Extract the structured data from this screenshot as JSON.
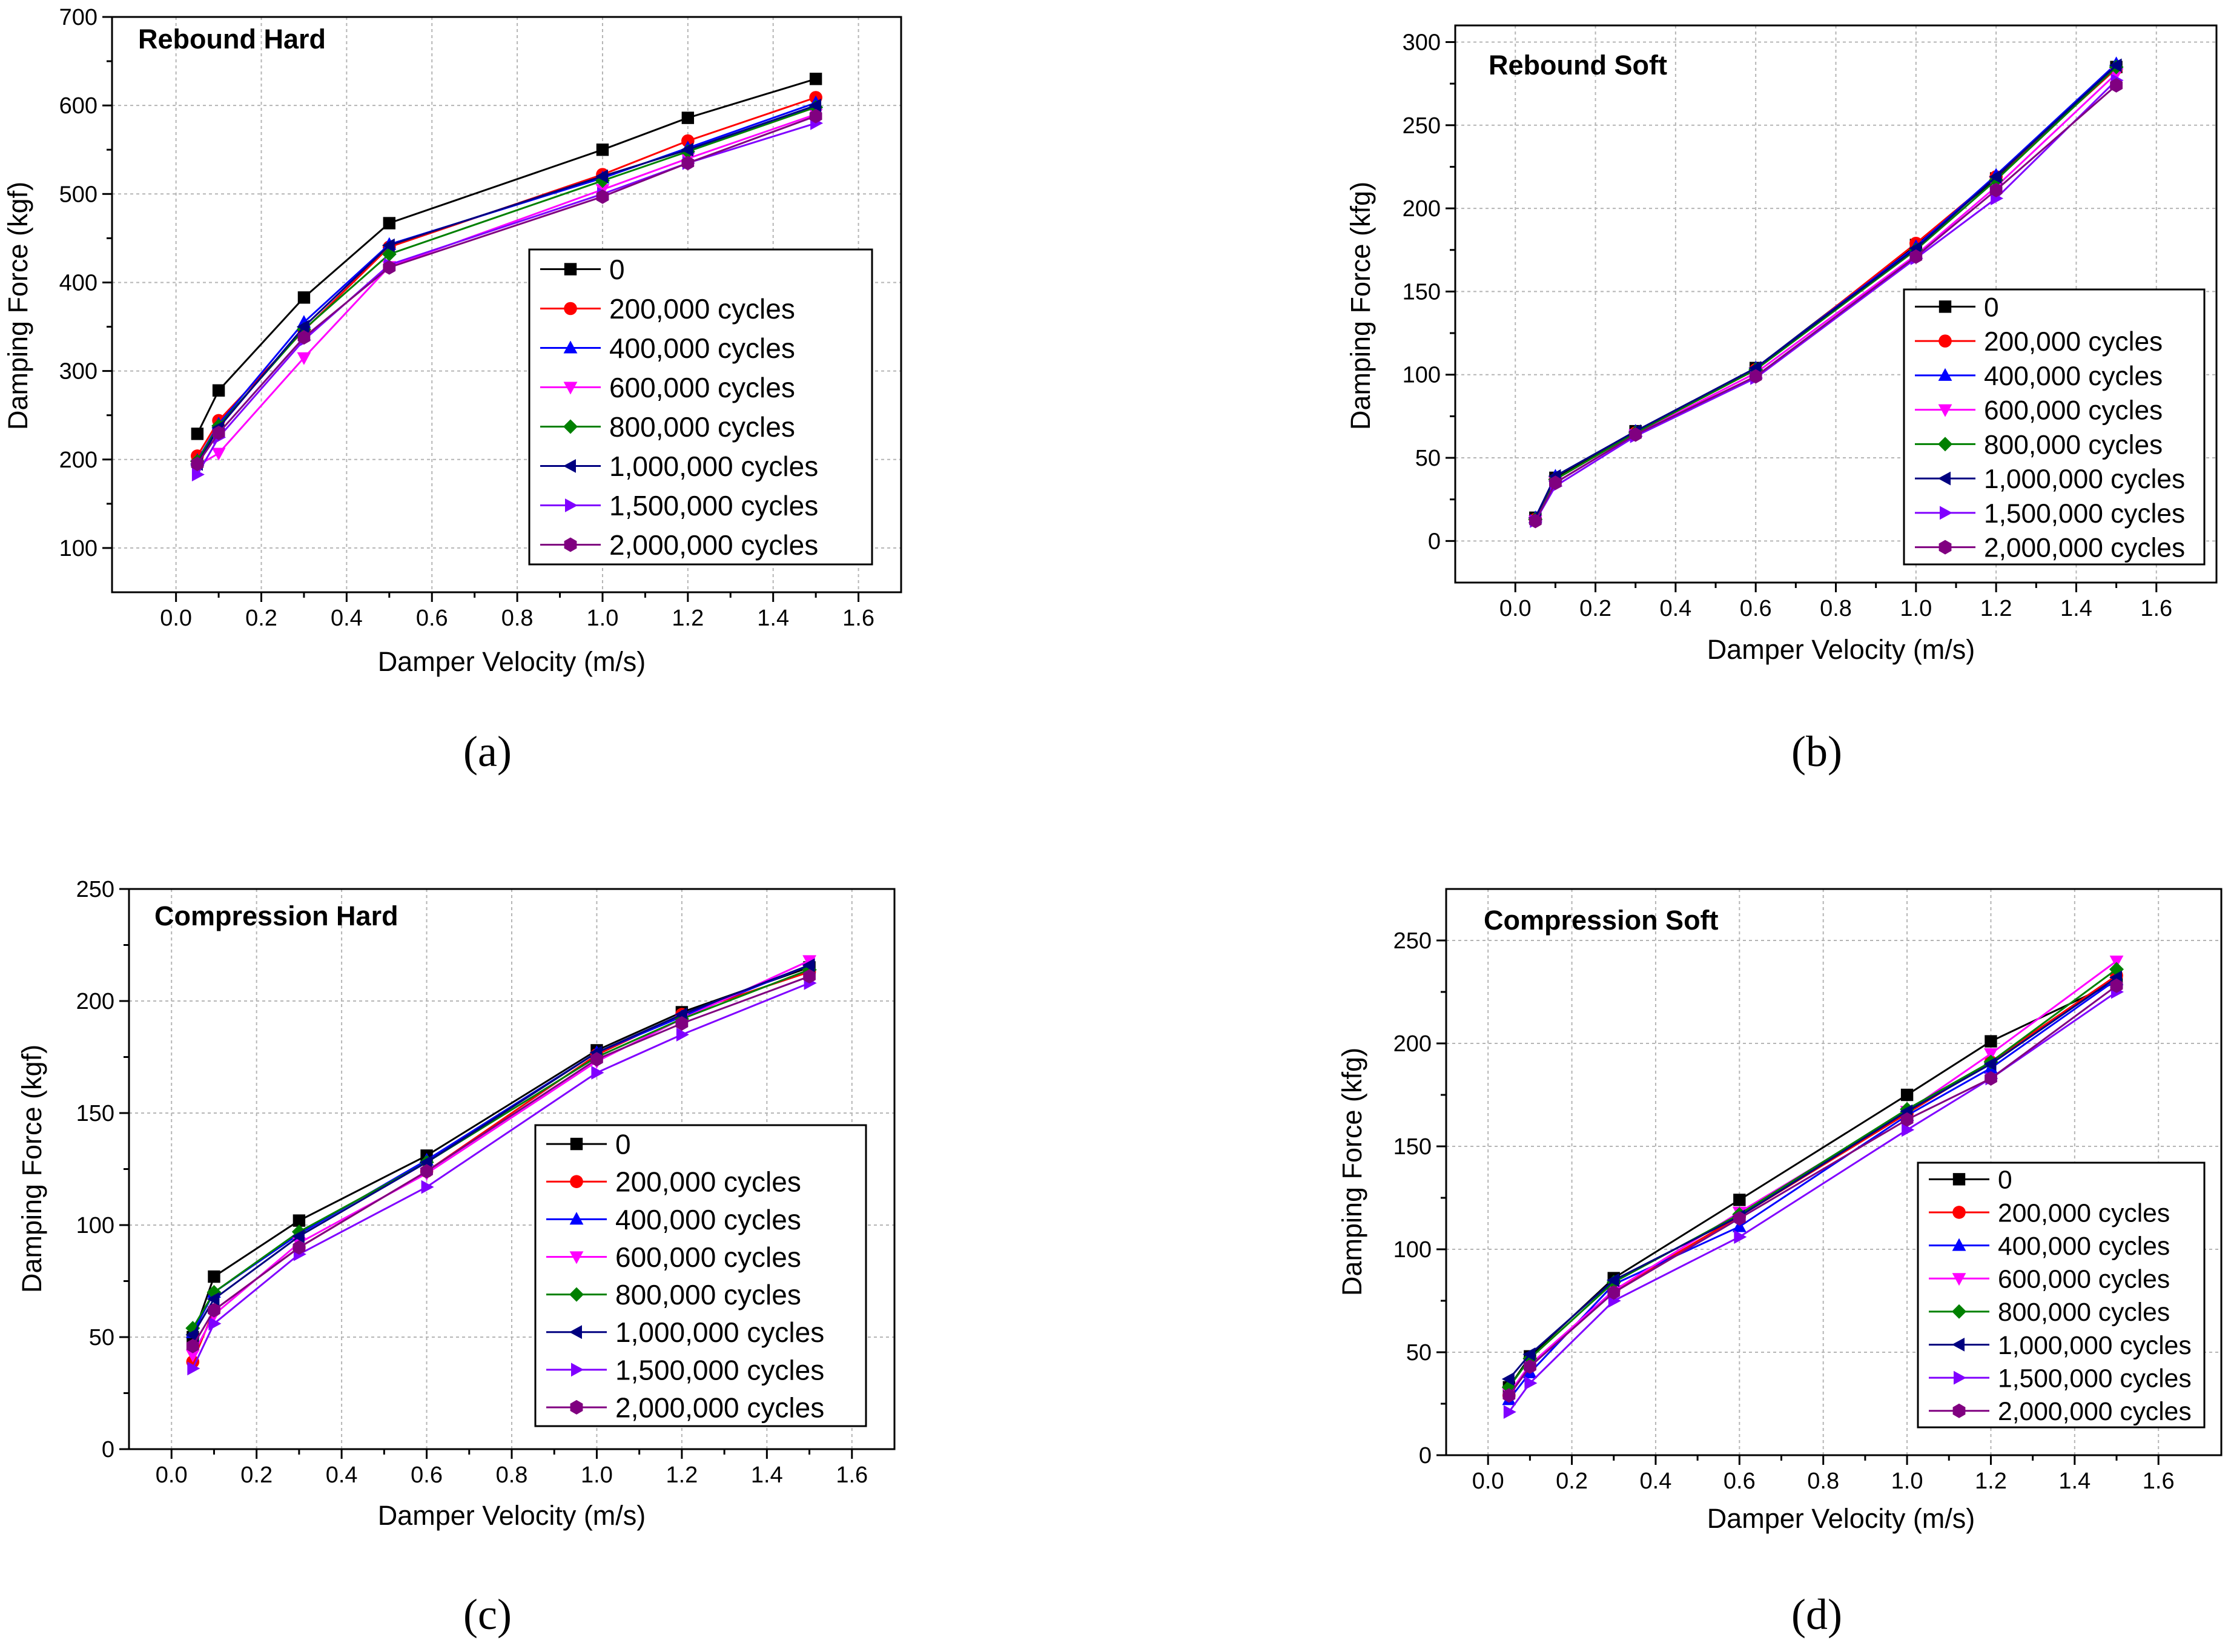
{
  "series_styles": [
    {
      "marker": "square",
      "color": "#000000"
    },
    {
      "marker": "circle",
      "color": "#ff0000"
    },
    {
      "marker": "triangle-up",
      "color": "#0000ff"
    },
    {
      "marker": "triangle-down",
      "color": "#ff00ff"
    },
    {
      "marker": "diamond",
      "color": "#008000"
    },
    {
      "marker": "triangle-left",
      "color": "#000080"
    },
    {
      "marker": "triangle-right",
      "color": "#8000ff"
    },
    {
      "marker": "hexagon",
      "color": "#800080"
    }
  ],
  "chart_data": [
    {
      "type": "line",
      "panel": "a",
      "caption": "(a)",
      "title": "Rebound Hard",
      "xlabel": "Damper Velocity (m/s)",
      "ylabel": "Damping Force (kgf)",
      "xlim": [
        -0.15,
        1.7
      ],
      "ylim": [
        50,
        700
      ],
      "xticks": [
        0.0,
        0.2,
        0.4,
        0.6,
        0.8,
        1.0,
        1.2,
        1.4,
        1.6
      ],
      "xtick_labels": [
        "0.0",
        "0.2",
        "0.4",
        "0.6",
        "0.8",
        "1.0",
        "1.2",
        "1.4",
        "1.6"
      ],
      "yticks": [
        100,
        200,
        300,
        400,
        500,
        600,
        700
      ],
      "ytick_labels": [
        "100",
        "200",
        "300",
        "400",
        "500",
        "600",
        "700"
      ],
      "grid": true,
      "legend_position": "right",
      "x": [
        0.05,
        0.1,
        0.3,
        0.5,
        1.0,
        1.2,
        1.5
      ],
      "series": [
        {
          "name": "0",
          "values": [
            229,
            278,
            383,
            467,
            550,
            586,
            630
          ]
        },
        {
          "name": "200,000 cycles",
          "values": [
            204,
            244,
            346,
            440,
            522,
            560,
            609
          ]
        },
        {
          "name": "400,000 cycles",
          "values": [
            199,
            240,
            355,
            443,
            518,
            552,
            603
          ]
        },
        {
          "name": "600,000 cycles",
          "values": [
            193,
            207,
            315,
            418,
            505,
            540,
            590
          ]
        },
        {
          "name": "800,000 cycles",
          "values": [
            198,
            238,
            347,
            432,
            515,
            548,
            598
          ]
        },
        {
          "name": "1,000,000 cycles",
          "values": [
            195,
            236,
            350,
            442,
            520,
            550,
            600
          ]
        },
        {
          "name": "1,500,000 cycles",
          "values": [
            183,
            225,
            335,
            420,
            500,
            535,
            580
          ]
        },
        {
          "name": "2,000,000 cycles",
          "values": [
            195,
            230,
            338,
            417,
            497,
            535,
            588
          ]
        }
      ]
    },
    {
      "type": "line",
      "panel": "b",
      "caption": "(b)",
      "title": "Rebound Soft",
      "xlabel": "Damper Velocity (m/s)",
      "ylabel": "Damping Force (kfg)",
      "xlim": [
        -0.15,
        1.75
      ],
      "ylim": [
        -25,
        310
      ],
      "xticks": [
        0.0,
        0.2,
        0.4,
        0.6,
        0.8,
        1.0,
        1.2,
        1.4,
        1.6
      ],
      "xtick_labels": [
        "0.0",
        "0.2",
        "0.4",
        "0.6",
        "0.8",
        "1.0",
        "1.2",
        "1.4",
        "1.6"
      ],
      "yticks": [
        0,
        50,
        100,
        150,
        200,
        250,
        300
      ],
      "ytick_labels": [
        "0",
        "50",
        "100",
        "150",
        "200",
        "250",
        "300"
      ],
      "grid": true,
      "legend_position": "bottom-right",
      "x": [
        0.05,
        0.1,
        0.3,
        0.6,
        1.0,
        1.2,
        1.5
      ],
      "series": [
        {
          "name": "0",
          "values": [
            14,
            38,
            66,
            104,
            178,
            218,
            285
          ]
        },
        {
          "name": "200,000 cycles",
          "values": [
            13,
            37,
            65,
            103,
            179,
            219,
            284
          ]
        },
        {
          "name": "400,000 cycles",
          "values": [
            14,
            39,
            66,
            104,
            177,
            220,
            287
          ]
        },
        {
          "name": "600,000 cycles",
          "values": [
            12,
            35,
            64,
            101,
            172,
            213,
            281
          ]
        },
        {
          "name": "800,000 cycles",
          "values": [
            13,
            37,
            65,
            103,
            175,
            217,
            285
          ]
        },
        {
          "name": "1,000,000 cycles",
          "values": [
            14,
            39,
            66,
            104,
            176,
            219,
            286
          ]
        },
        {
          "name": "1,500,000 cycles",
          "values": [
            12,
            33,
            63,
            98,
            170,
            206,
            277
          ]
        },
        {
          "name": "2,000,000 cycles",
          "values": [
            12,
            35,
            64,
            99,
            171,
            211,
            274
          ]
        }
      ]
    },
    {
      "type": "line",
      "panel": "c",
      "caption": "(c)",
      "title": "Compression Hard",
      "xlabel": "Damper Velocity (m/s)",
      "ylabel": "Damping Force (kgf)",
      "xlim": [
        -0.1,
        1.7
      ],
      "ylim": [
        0,
        250
      ],
      "xticks": [
        0.0,
        0.2,
        0.4,
        0.6,
        0.8,
        1.0,
        1.2,
        1.4,
        1.6
      ],
      "xtick_labels": [
        "0.0",
        "0.2",
        "0.4",
        "0.6",
        "0.8",
        "1.0",
        "1.2",
        "1.4",
        "1.6"
      ],
      "yticks": [
        0,
        50,
        100,
        150,
        200,
        250
      ],
      "ytick_labels": [
        "0",
        "50",
        "100",
        "150",
        "200",
        "250"
      ],
      "grid": true,
      "legend_position": "right",
      "x": [
        0.05,
        0.1,
        0.3,
        0.6,
        1.0,
        1.2,
        1.5
      ],
      "series": [
        {
          "name": "0",
          "values": [
            50,
            77,
            102,
            131,
            178,
            195,
            215
          ]
        },
        {
          "name": "200,000 cycles",
          "values": [
            39,
            62,
            90,
            124,
            176,
            194,
            213
          ]
        },
        {
          "name": "400,000 cycles",
          "values": [
            52,
            70,
            96,
            129,
            177,
            193,
            216
          ]
        },
        {
          "name": "600,000 cycles",
          "values": [
            42,
            60,
            92,
            123,
            173,
            192,
            218
          ]
        },
        {
          "name": "800,000 cycles",
          "values": [
            54,
            70,
            97,
            128,
            175,
            192,
            214
          ]
        },
        {
          "name": "1,000,000 cycles",
          "values": [
            51,
            67,
            95,
            128,
            177,
            194,
            216
          ]
        },
        {
          "name": "1,500,000 cycles",
          "values": [
            36,
            56,
            87,
            117,
            168,
            185,
            208
          ]
        },
        {
          "name": "2,000,000 cycles",
          "values": [
            46,
            62,
            90,
            124,
            174,
            190,
            211
          ]
        }
      ]
    },
    {
      "type": "line",
      "panel": "d",
      "caption": "(d)",
      "title": "Compression Soft",
      "xlabel": "Damper Velocity (m/s)",
      "ylabel": "Damping Force (kfg)",
      "xlim": [
        -0.1,
        1.75
      ],
      "ylim": [
        0,
        275
      ],
      "xticks": [
        0.0,
        0.2,
        0.4,
        0.6,
        0.8,
        1.0,
        1.2,
        1.4,
        1.6
      ],
      "xtick_labels": [
        "0.0",
        "0.2",
        "0.4",
        "0.6",
        "0.8",
        "1.0",
        "1.2",
        "1.4",
        "1.6"
      ],
      "yticks": [
        0,
        50,
        100,
        150,
        200,
        250
      ],
      "ytick_labels": [
        "0",
        "50",
        "100",
        "150",
        "200",
        "250"
      ],
      "grid": true,
      "legend_position": "bottom-right",
      "x": [
        0.05,
        0.1,
        0.3,
        0.6,
        1.0,
        1.2,
        1.5
      ],
      "series": [
        {
          "name": "0",
          "values": [
            33,
            48,
            86,
            124,
            175,
            201,
            230
          ]
        },
        {
          "name": "200,000 cycles",
          "values": [
            29,
            43,
            80,
            116,
            166,
            191,
            233
          ]
        },
        {
          "name": "400,000 cycles",
          "values": [
            27,
            40,
            83,
            111,
            165,
            188,
            231
          ]
        },
        {
          "name": "600,000 cycles",
          "values": [
            30,
            44,
            80,
            118,
            167,
            195,
            240
          ]
        },
        {
          "name": "800,000 cycles",
          "values": [
            33,
            47,
            84,
            117,
            168,
            191,
            236
          ]
        },
        {
          "name": "1,000,000 cycles",
          "values": [
            37,
            49,
            85,
            116,
            167,
            190,
            232
          ]
        },
        {
          "name": "1,500,000 cycles",
          "values": [
            21,
            35,
            75,
            106,
            158,
            183,
            225
          ]
        },
        {
          "name": "2,000,000 cycles",
          "values": [
            29,
            43,
            79,
            115,
            163,
            183,
            228
          ]
        }
      ]
    }
  ]
}
